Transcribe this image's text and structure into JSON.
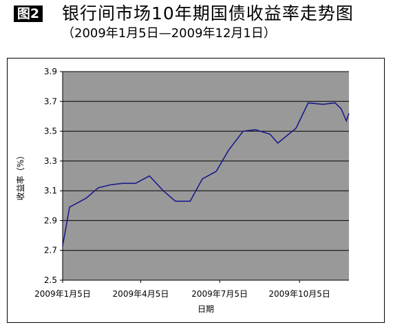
{
  "figure": {
    "badge": "图2",
    "title": "银行间市场10年期国债收益率走势图",
    "subtitle": "（2009年1月5日—2009年12月1日）"
  },
  "chart_data": {
    "type": "line",
    "title": "银行间市场10年期国债收益率走势图",
    "subtitle": "（2009年1月5日—2009年12月1日）",
    "xlabel": "日期",
    "ylabel": "收益率（%）",
    "ylim": [
      2.5,
      3.9
    ],
    "yticks": [
      "2.5",
      "2.7",
      "2.9",
      "3.1",
      "3.3",
      "3.5",
      "3.7",
      "3.9"
    ],
    "xlim": [
      "2009-01-05",
      "2009-12-01"
    ],
    "xticks": [
      {
        "date": "2009-01-05",
        "label": "2009年1月5日"
      },
      {
        "date": "2009-04-05",
        "label": "2009年4月5日"
      },
      {
        "date": "2009-07-05",
        "label": "2009年7月5日"
      },
      {
        "date": "2009-10-05",
        "label": "2009年10月5日"
      }
    ],
    "grid": true,
    "plot_background": "#999999",
    "line_color": "#1a1a8c",
    "series": [
      {
        "points": [
          {
            "x": "2009-01-05",
            "y": 2.73
          },
          {
            "x": "2009-01-13",
            "y": 2.99
          },
          {
            "x": "2009-02-01",
            "y": 3.05
          },
          {
            "x": "2009-02-15",
            "y": 3.12
          },
          {
            "x": "2009-03-01",
            "y": 3.14
          },
          {
            "x": "2009-03-15",
            "y": 3.15
          },
          {
            "x": "2009-03-30",
            "y": 3.15
          },
          {
            "x": "2009-04-15",
            "y": 3.2
          },
          {
            "x": "2009-05-01",
            "y": 3.1
          },
          {
            "x": "2009-05-15",
            "y": 3.03
          },
          {
            "x": "2009-06-01",
            "y": 3.03
          },
          {
            "x": "2009-06-15",
            "y": 3.18
          },
          {
            "x": "2009-07-01",
            "y": 3.23
          },
          {
            "x": "2009-07-15",
            "y": 3.37
          },
          {
            "x": "2009-08-01",
            "y": 3.5
          },
          {
            "x": "2009-08-15",
            "y": 3.51
          },
          {
            "x": "2009-09-01",
            "y": 3.48
          },
          {
            "x": "2009-09-10",
            "y": 3.42
          },
          {
            "x": "2009-10-01",
            "y": 3.52
          },
          {
            "x": "2009-10-15",
            "y": 3.69
          },
          {
            "x": "2009-11-01",
            "y": 3.68
          },
          {
            "x": "2009-11-15",
            "y": 3.69
          },
          {
            "x": "2009-11-22",
            "y": 3.65
          },
          {
            "x": "2009-11-28",
            "y": 3.57
          },
          {
            "x": "2009-12-01",
            "y": 3.62
          }
        ]
      }
    ]
  }
}
